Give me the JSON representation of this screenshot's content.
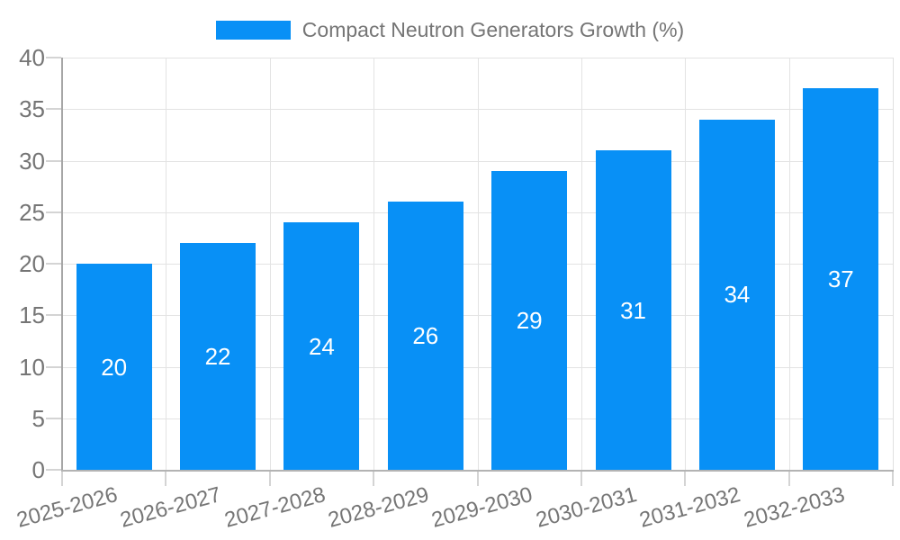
{
  "legend": {
    "label": "Compact Neutron Generators Growth (%)"
  },
  "chart_data": {
    "type": "bar",
    "title": "Compact Neutron Generators Growth (%)",
    "categories": [
      "2025-2026",
      "2026-2027",
      "2027-2028",
      "2028-2029",
      "2029-2030",
      "2030-2031",
      "2031-2032",
      "2032-2033"
    ],
    "values": [
      20,
      22,
      24,
      26,
      29,
      31,
      34,
      37
    ],
    "value_labels": [
      "20",
      "22",
      "24",
      "26",
      "29",
      "31",
      "34",
      "37"
    ],
    "xlabel": "",
    "ylabel": "",
    "ylim": [
      0,
      40
    ],
    "yticks": [
      0,
      5,
      10,
      15,
      20,
      25,
      30,
      35,
      40
    ],
    "grid": true,
    "legend_position": "top-center",
    "x_label_rotation_deg": -15,
    "colors": {
      "bar": "#0890f6",
      "value_label": "#ffffff",
      "tick_label": "#757575",
      "legend_text": "#757575",
      "gridline": "#e3e3e3",
      "axis_line_y": "#a6a6a6",
      "axis_line_x": "#b3b3b3",
      "plot_border_right": "#e0e0e0",
      "tick_mark": "#d4d4d4",
      "background": "#ffffff"
    }
  }
}
